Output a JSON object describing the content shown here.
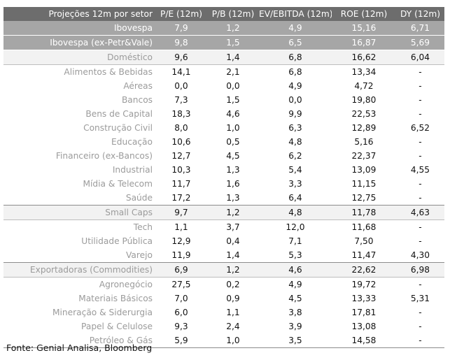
{
  "table": {
    "header": [
      "Projeções 12m por setor",
      "P/E (12m)",
      "P/B (12m)",
      "EV/EBITDA (12m)",
      "ROE (12m)",
      "DY (12m)"
    ],
    "rows": [
      {
        "style": "dark",
        "cells": [
          "Ibovespa",
          "7,9",
          "1,2",
          "4,9",
          "15,16",
          "6,71"
        ]
      },
      {
        "style": "dark",
        "cells": [
          "Ibovespa (ex-Petr&Vale)",
          "9,8",
          "1,5",
          "6,5",
          "16,87",
          "5,69"
        ]
      },
      {
        "style": "grp",
        "cells": [
          "Doméstico",
          "9,6",
          "1,4",
          "6,8",
          "16,62",
          "6,04"
        ]
      },
      {
        "style": "",
        "cells": [
          "Alimentos & Bebidas",
          "14,1",
          "2,1",
          "6,8",
          "13,34",
          "-"
        ]
      },
      {
        "style": "",
        "cells": [
          "Aéreas",
          "0,0",
          "0,0",
          "4,9",
          "4,72",
          "-"
        ]
      },
      {
        "style": "",
        "cells": [
          "Bancos",
          "7,3",
          "1,5",
          "0,0",
          "19,80",
          "-"
        ]
      },
      {
        "style": "",
        "cells": [
          "Bens de Capital",
          "18,3",
          "4,6",
          "9,9",
          "22,53",
          "-"
        ]
      },
      {
        "style": "",
        "cells": [
          "Construção Civil",
          "8,0",
          "1,0",
          "6,3",
          "12,89",
          "6,52"
        ]
      },
      {
        "style": "",
        "cells": [
          "Educação",
          "10,6",
          "0,5",
          "4,8",
          "5,16",
          "-"
        ]
      },
      {
        "style": "",
        "cells": [
          "Financeiro (ex-Bancos)",
          "12,7",
          "4,5",
          "6,2",
          "22,37",
          "-"
        ]
      },
      {
        "style": "",
        "cells": [
          "Industrial",
          "10,3",
          "1,3",
          "5,4",
          "13,09",
          "4,55"
        ]
      },
      {
        "style": "",
        "cells": [
          "Mídia & Telecom",
          "11,7",
          "1,6",
          "3,3",
          "11,15",
          "-"
        ]
      },
      {
        "style": "",
        "cells": [
          "Saúde",
          "17,2",
          "1,3",
          "6,4",
          "12,75",
          "-"
        ]
      },
      {
        "style": "grp",
        "cells": [
          "Small Caps",
          "9,7",
          "1,2",
          "4,8",
          "11,78",
          "4,63"
        ]
      },
      {
        "style": "",
        "cells": [
          "Tech",
          "1,1",
          "3,7",
          "12,0",
          "11,68",
          "-"
        ]
      },
      {
        "style": "",
        "cells": [
          "Utilidade Pública",
          "12,9",
          "0,4",
          "7,1",
          "7,50",
          "-"
        ]
      },
      {
        "style": "",
        "cells": [
          "Varejo",
          "11,9",
          "1,4",
          "5,3",
          "11,47",
          "4,30"
        ]
      },
      {
        "style": "grp",
        "cells": [
          "Exportadoras (Commodities)",
          "6,9",
          "1,2",
          "4,6",
          "22,62",
          "6,98"
        ]
      },
      {
        "style": "",
        "cells": [
          "Agronegócio",
          "27,5",
          "0,2",
          "4,9",
          "19,72",
          "-"
        ]
      },
      {
        "style": "",
        "cells": [
          "Materiais Básicos",
          "7,0",
          "0,9",
          "4,5",
          "13,33",
          "5,31"
        ]
      },
      {
        "style": "",
        "cells": [
          "Mineração & Siderurgia",
          "6,0",
          "1,1",
          "3,8",
          "17,81",
          "-"
        ]
      },
      {
        "style": "",
        "cells": [
          "Papel & Celulose",
          "9,3",
          "2,4",
          "3,9",
          "13,08",
          "-"
        ]
      },
      {
        "style": "last",
        "cells": [
          "Petróleo & Gás",
          "5,9",
          "1,0",
          "3,5",
          "14,58",
          "-"
        ]
      }
    ]
  },
  "source": "Fonte: Genial Analisa, Bloomberg"
}
